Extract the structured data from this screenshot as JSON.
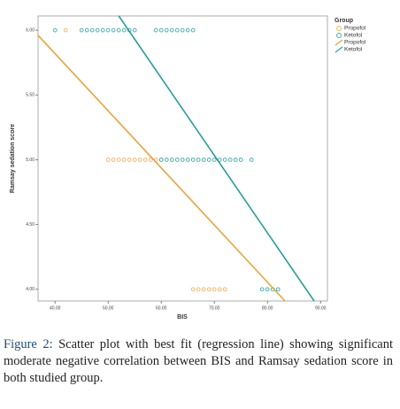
{
  "chart_data": {
    "type": "scatter",
    "x_label": "BIS",
    "y_label": "Ramsay sedation score",
    "legend_title": "Group",
    "xlim": [
      36.8,
      91.3
    ],
    "ylim": [
      3.91,
      6.11
    ],
    "xticks": [
      {
        "value": 40,
        "label": "40.00"
      },
      {
        "value": 50,
        "label": "50.00"
      },
      {
        "value": 60,
        "label": "60.00"
      },
      {
        "value": 70,
        "label": "70.00"
      },
      {
        "value": 80,
        "label": "80.00"
      },
      {
        "value": 90,
        "label": "90.00"
      }
    ],
    "yticks": [
      {
        "value": 4,
        "label": "4.00"
      },
      {
        "value": 4.5,
        "label": "4.50"
      },
      {
        "value": 5,
        "label": "5.00"
      },
      {
        "value": 5.5,
        "label": "5.50"
      },
      {
        "value": 6,
        "label": "6.00"
      }
    ],
    "series": [
      {
        "name": "Propofol",
        "color": "#f0b060",
        "marker": "circle",
        "x": [
          42,
          50,
          51,
          52,
          53,
          54,
          55,
          56,
          57,
          58,
          59,
          60,
          66,
          67,
          68,
          69,
          70,
          71,
          72
        ],
        "values": [
          6,
          5,
          5,
          5,
          5,
          5,
          5,
          5,
          5,
          5,
          5,
          5,
          4,
          4,
          4,
          4,
          4,
          4,
          4
        ]
      },
      {
        "name": "Ketofol",
        "color": "#3aa9a9",
        "marker": "circle",
        "x": [
          40,
          45,
          46,
          47,
          48,
          49,
          50,
          51,
          52,
          53,
          54,
          55,
          59,
          60,
          61,
          62,
          63,
          64,
          65,
          66,
          60,
          61,
          62,
          63,
          64,
          65,
          66,
          67,
          68,
          69,
          70,
          71,
          72,
          73,
          74,
          75,
          77,
          79,
          80,
          81,
          82
        ],
        "values": [
          6,
          6,
          6,
          6,
          6,
          6,
          6,
          6,
          6,
          6,
          6,
          6,
          6,
          6,
          6,
          6,
          6,
          6,
          6,
          6,
          5,
          5,
          5,
          5,
          5,
          5,
          5,
          5,
          5,
          5,
          5,
          5,
          5,
          5,
          5,
          5,
          5,
          4,
          4,
          4,
          4
        ]
      },
      {
        "name": "Propofol",
        "color": "#e8a33c",
        "marker": "line",
        "x": [
          36.8,
          83.3
        ],
        "values": [
          5.96,
          3.91
        ]
      },
      {
        "name": "Ketofol",
        "color": "#2a9d9d",
        "marker": "line",
        "x": [
          52,
          88.8
        ],
        "values": [
          6.11,
          3.91
        ]
      }
    ]
  },
  "caption": {
    "label": "Figure 2:",
    "text": "Scatter plot with best fit (regression line) showing significant moderate negative correlation between BIS and Ramsay sedation score in both studied group."
  }
}
